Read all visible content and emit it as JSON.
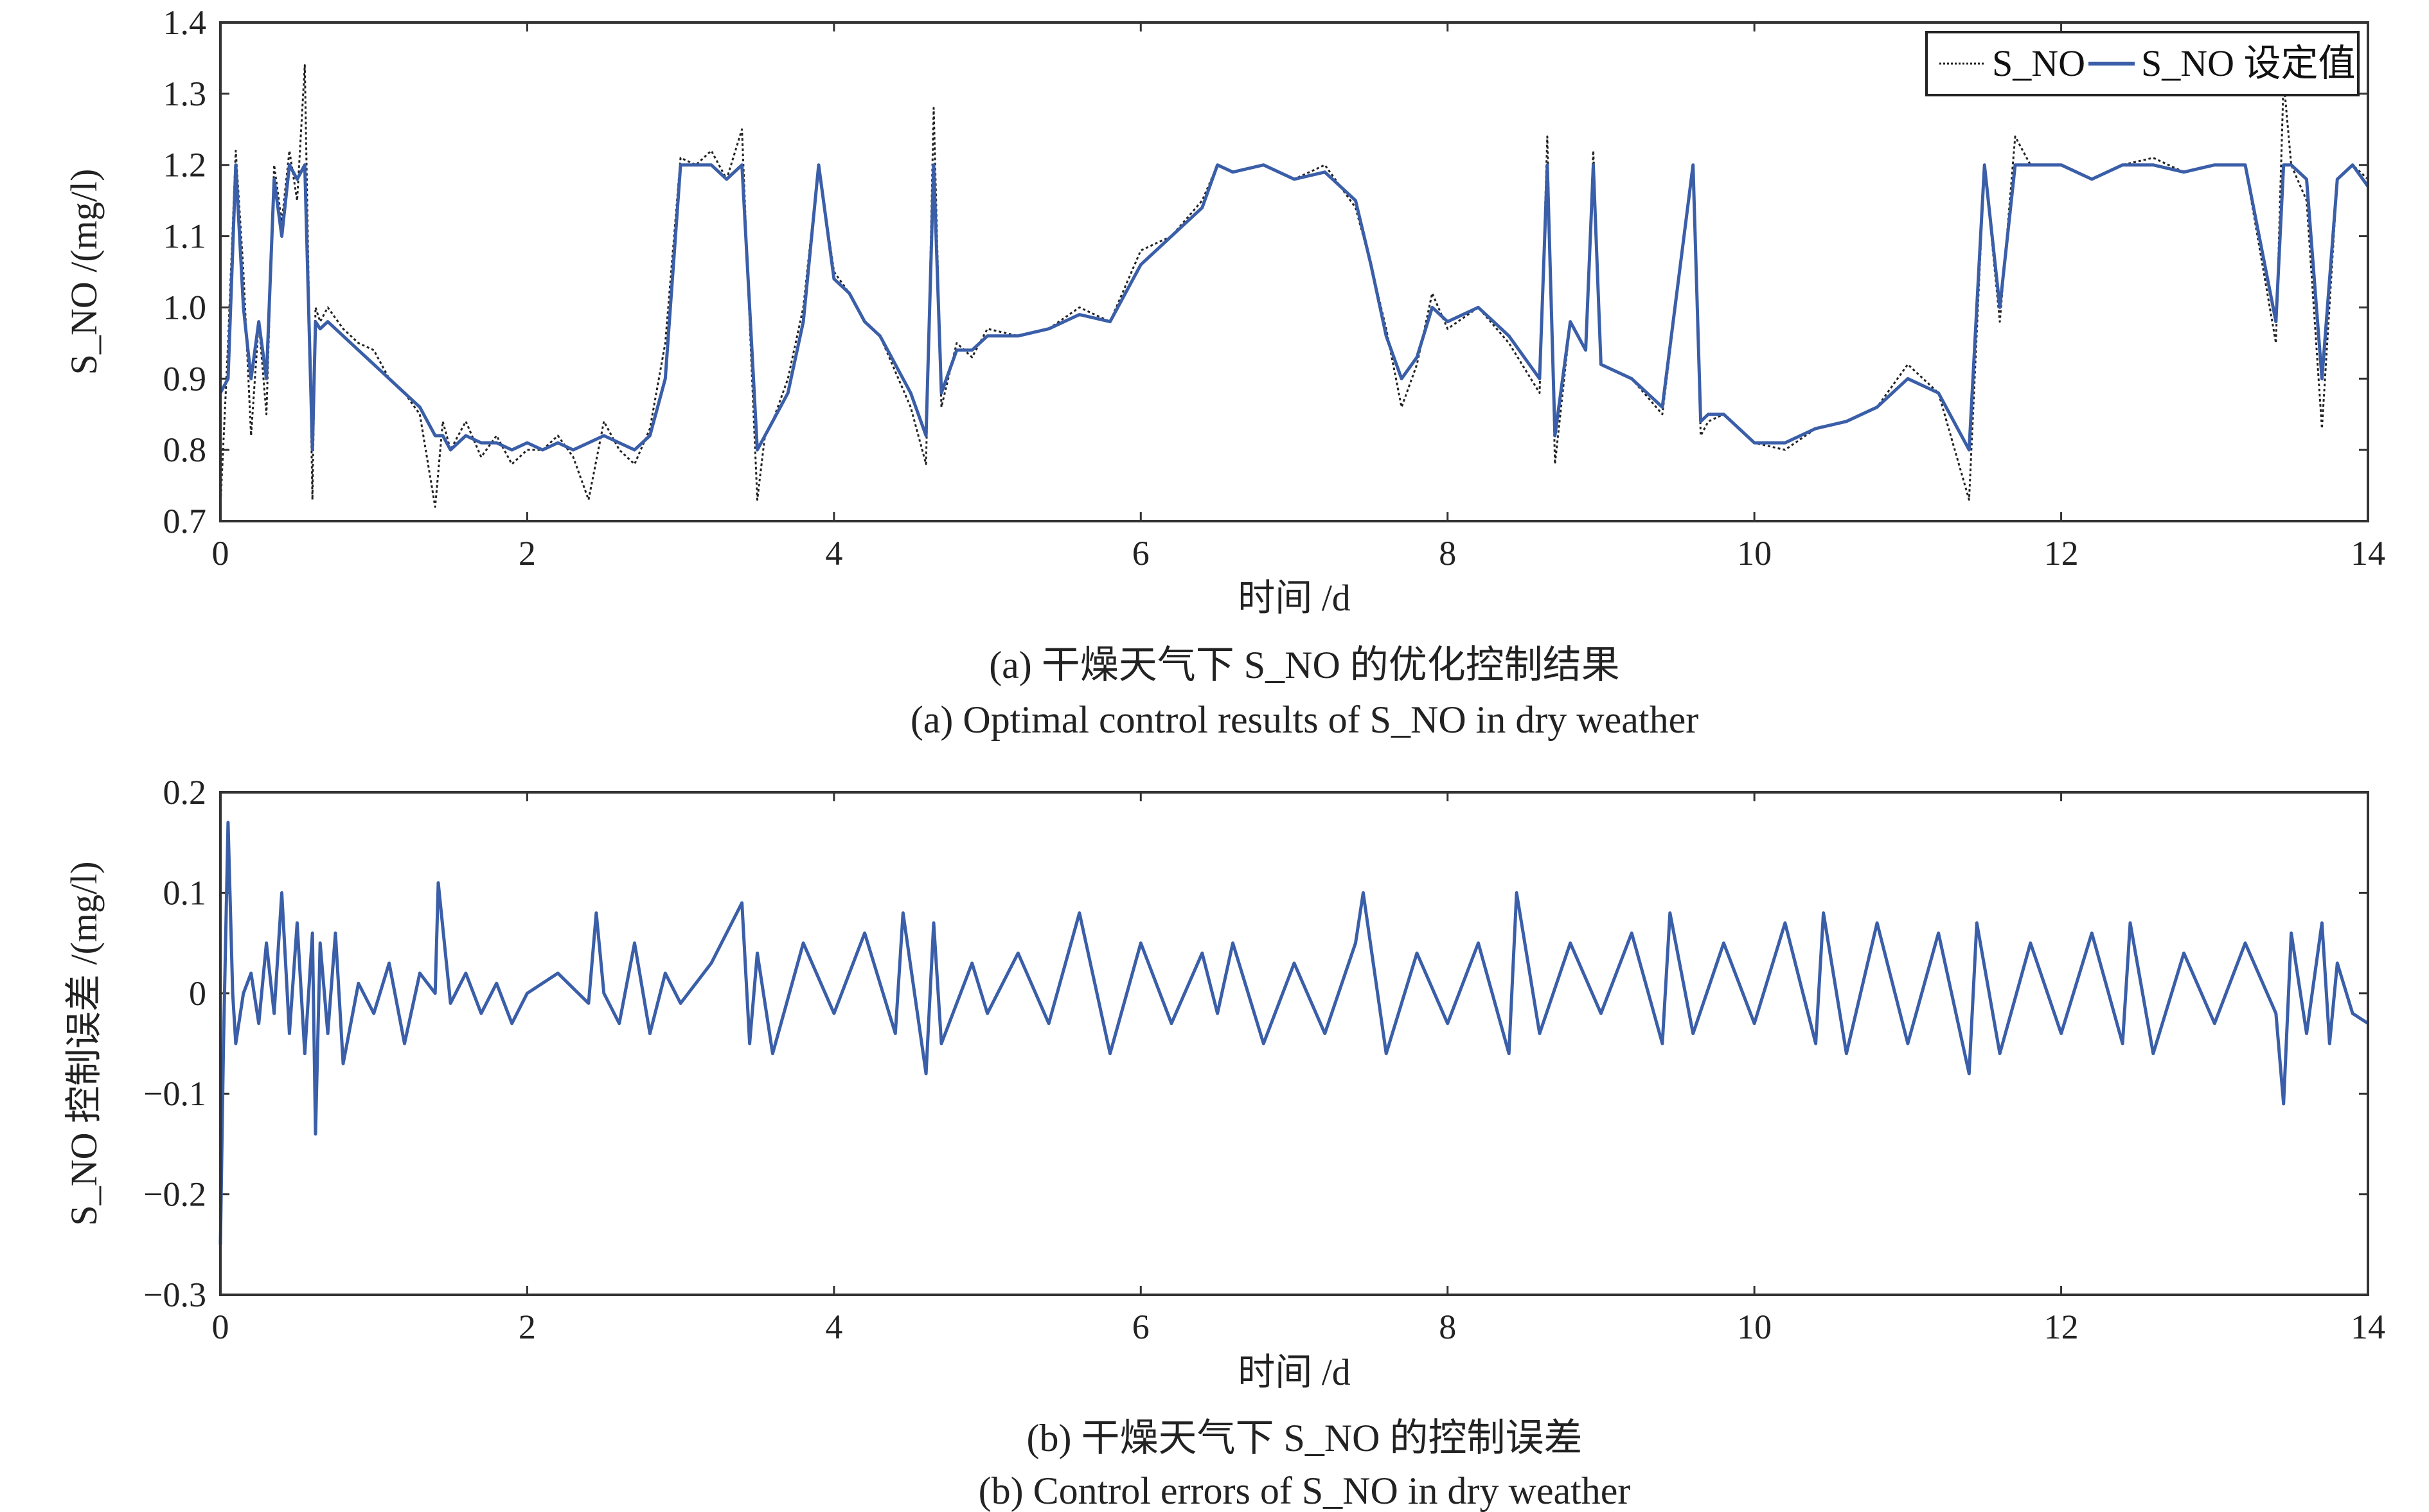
{
  "chart_data": [
    {
      "type": "line",
      "xlabel": "时间 /d",
      "ylabel": "S_NO /(mg/l)",
      "caption_cn": "(a) 干燥天气下 S_NO 的优化控制结果",
      "caption_en": "(a) Optimal control results of S_NO in dry weather",
      "xlim": [
        0,
        14
      ],
      "ylim": [
        0.7,
        1.4
      ],
      "xticks": [
        "0",
        "2",
        "4",
        "6",
        "8",
        "10",
        "12",
        "14"
      ],
      "yticks": [
        "0.7",
        "0.8",
        "0.9",
        "1.0",
        "1.1",
        "1.2",
        "1.3",
        "1.4"
      ],
      "legend_position": "top-right",
      "series": [
        {
          "name": "S_NO",
          "style": "dotted",
          "color": "#222222",
          "x": [
            0,
            0.05,
            0.1,
            0.15,
            0.2,
            0.25,
            0.3,
            0.35,
            0.4,
            0.45,
            0.5,
            0.55,
            0.6,
            0.62,
            0.65,
            0.7,
            0.8,
            0.9,
            1.0,
            1.1,
            1.2,
            1.3,
            1.4,
            1.45,
            1.5,
            1.6,
            1.7,
            1.8,
            1.9,
            2.0,
            2.1,
            2.2,
            2.3,
            2.4,
            2.5,
            2.6,
            2.7,
            2.8,
            2.9,
            3.0,
            3.1,
            3.2,
            3.3,
            3.4,
            3.45,
            3.5,
            3.55,
            3.6,
            3.7,
            3.8,
            3.9,
            4.0,
            4.1,
            4.2,
            4.3,
            4.4,
            4.5,
            4.6,
            4.65,
            4.7,
            4.8,
            4.9,
            5.0,
            5.2,
            5.4,
            5.6,
            5.8,
            6.0,
            6.2,
            6.4,
            6.5,
            6.6,
            6.8,
            7.0,
            7.2,
            7.4,
            7.5,
            7.6,
            7.7,
            7.8,
            7.9,
            8.0,
            8.2,
            8.4,
            8.6,
            8.65,
            8.7,
            8.8,
            8.9,
            8.95,
            9.0,
            9.2,
            9.4,
            9.6,
            9.65,
            9.7,
            9.8,
            10.0,
            10.2,
            10.4,
            10.6,
            10.8,
            11.0,
            11.2,
            11.4,
            11.5,
            11.6,
            11.7,
            11.8,
            12.0,
            12.2,
            12.4,
            12.6,
            12.8,
            13.0,
            13.2,
            13.4,
            13.45,
            13.5,
            13.6,
            13.7,
            13.8,
            13.9,
            14.0
          ],
          "y": [
            0.72,
            0.95,
            1.22,
            1.05,
            0.82,
            0.98,
            0.85,
            1.2,
            1.12,
            1.22,
            1.15,
            1.34,
            0.73,
            1.0,
            0.98,
            1.0,
            0.97,
            0.95,
            0.94,
            0.9,
            0.88,
            0.85,
            0.72,
            0.84,
            0.8,
            0.84,
            0.79,
            0.82,
            0.78,
            0.8,
            0.8,
            0.82,
            0.79,
            0.73,
            0.84,
            0.8,
            0.78,
            0.83,
            0.95,
            1.21,
            1.2,
            1.22,
            1.18,
            1.25,
            0.98,
            0.73,
            0.82,
            0.84,
            0.9,
            1.0,
            1.2,
            1.05,
            1.02,
            0.98,
            0.96,
            0.91,
            0.86,
            0.78,
            1.28,
            0.86,
            0.95,
            0.93,
            0.97,
            0.96,
            0.97,
            1.0,
            0.98,
            1.08,
            1.1,
            1.15,
            1.2,
            1.19,
            1.2,
            1.18,
            1.2,
            1.14,
            1.06,
            0.97,
            0.86,
            0.92,
            1.02,
            0.97,
            1.0,
            0.95,
            0.88,
            1.24,
            0.78,
            0.98,
            0.94,
            1.22,
            0.92,
            0.9,
            0.85,
            1.2,
            0.82,
            0.84,
            0.85,
            0.81,
            0.8,
            0.83,
            0.84,
            0.86,
            0.92,
            0.88,
            0.73,
            1.2,
            0.98,
            1.24,
            1.2,
            1.2,
            1.18,
            1.2,
            1.21,
            1.19,
            1.2,
            1.2,
            0.95,
            1.32,
            1.2,
            1.15,
            0.83,
            1.18,
            1.2,
            1.18
          ]
        },
        {
          "name": "S_NO 设定值",
          "style": "solid",
          "color": "#3a5ea8",
          "x": [
            0,
            0.05,
            0.1,
            0.15,
            0.2,
            0.25,
            0.3,
            0.35,
            0.4,
            0.45,
            0.5,
            0.55,
            0.6,
            0.62,
            0.65,
            0.7,
            0.8,
            0.9,
            1.0,
            1.1,
            1.2,
            1.3,
            1.4,
            1.45,
            1.5,
            1.6,
            1.7,
            1.8,
            1.9,
            2.0,
            2.1,
            2.2,
            2.3,
            2.4,
            2.5,
            2.6,
            2.7,
            2.8,
            2.9,
            3.0,
            3.1,
            3.2,
            3.3,
            3.4,
            3.45,
            3.5,
            3.55,
            3.6,
            3.7,
            3.8,
            3.9,
            4.0,
            4.1,
            4.2,
            4.3,
            4.4,
            4.5,
            4.6,
            4.65,
            4.7,
            4.8,
            4.9,
            5.0,
            5.2,
            5.4,
            5.6,
            5.8,
            6.0,
            6.2,
            6.4,
            6.5,
            6.6,
            6.8,
            7.0,
            7.2,
            7.4,
            7.5,
            7.6,
            7.7,
            7.8,
            7.9,
            8.0,
            8.2,
            8.4,
            8.6,
            8.65,
            8.7,
            8.8,
            8.9,
            8.95,
            9.0,
            9.2,
            9.4,
            9.6,
            9.65,
            9.7,
            9.8,
            10.0,
            10.2,
            10.4,
            10.6,
            10.8,
            11.0,
            11.2,
            11.4,
            11.5,
            11.6,
            11.7,
            11.8,
            12.0,
            12.2,
            12.4,
            12.6,
            12.8,
            13.0,
            13.2,
            13.4,
            13.45,
            13.5,
            13.6,
            13.7,
            13.8,
            13.9,
            14.0
          ],
          "y": [
            0.88,
            0.9,
            1.2,
            1.0,
            0.9,
            0.98,
            0.9,
            1.18,
            1.1,
            1.2,
            1.18,
            1.2,
            0.8,
            0.98,
            0.97,
            0.98,
            0.96,
            0.94,
            0.92,
            0.9,
            0.88,
            0.86,
            0.82,
            0.82,
            0.8,
            0.82,
            0.81,
            0.81,
            0.8,
            0.81,
            0.8,
            0.81,
            0.8,
            0.81,
            0.82,
            0.81,
            0.8,
            0.82,
            0.9,
            1.2,
            1.2,
            1.2,
            1.18,
            1.2,
            1.0,
            0.8,
            0.82,
            0.84,
            0.88,
            0.98,
            1.2,
            1.04,
            1.02,
            0.98,
            0.96,
            0.92,
            0.88,
            0.82,
            1.2,
            0.88,
            0.94,
            0.94,
            0.96,
            0.96,
            0.97,
            0.99,
            0.98,
            1.06,
            1.1,
            1.14,
            1.2,
            1.19,
            1.2,
            1.18,
            1.19,
            1.15,
            1.06,
            0.96,
            0.9,
            0.93,
            1.0,
            0.98,
            1.0,
            0.96,
            0.9,
            1.2,
            0.82,
            0.98,
            0.94,
            1.2,
            0.92,
            0.9,
            0.86,
            1.2,
            0.84,
            0.85,
            0.85,
            0.81,
            0.81,
            0.83,
            0.84,
            0.86,
            0.9,
            0.88,
            0.8,
            1.2,
            1.0,
            1.2,
            1.2,
            1.2,
            1.18,
            1.2,
            1.2,
            1.19,
            1.2,
            1.2,
            0.98,
            1.2,
            1.2,
            1.18,
            0.9,
            1.18,
            1.2,
            1.17
          ]
        }
      ]
    },
    {
      "type": "line",
      "xlabel": "时间 /d",
      "ylabel": "S_NO 控制误差 /(mg/l)",
      "caption_cn": "(b) 干燥天气下 S_NO 的控制误差",
      "caption_en": "(b) Control errors of S_NO in dry weather",
      "xlim": [
        0,
        14
      ],
      "ylim": [
        -0.3,
        0.2
      ],
      "xticks": [
        "0",
        "2",
        "4",
        "6",
        "8",
        "10",
        "12",
        "14"
      ],
      "yticks": [
        "−0.3",
        "−0.2",
        "−0.1",
        "0",
        "0.1",
        "0.2"
      ],
      "series": [
        {
          "name": "",
          "style": "solid",
          "color": "#3a5ea8",
          "x": [
            0,
            0.02,
            0.05,
            0.08,
            0.1,
            0.15,
            0.2,
            0.25,
            0.3,
            0.35,
            0.4,
            0.45,
            0.5,
            0.55,
            0.6,
            0.62,
            0.65,
            0.7,
            0.75,
            0.8,
            0.9,
            1.0,
            1.1,
            1.2,
            1.3,
            1.4,
            1.42,
            1.5,
            1.6,
            1.7,
            1.8,
            1.9,
            2.0,
            2.2,
            2.4,
            2.45,
            2.5,
            2.6,
            2.7,
            2.8,
            2.9,
            3.0,
            3.2,
            3.4,
            3.45,
            3.5,
            3.6,
            3.8,
            4.0,
            4.2,
            4.4,
            4.45,
            4.6,
            4.65,
            4.7,
            4.9,
            5.0,
            5.2,
            5.4,
            5.6,
            5.8,
            6.0,
            6.2,
            6.4,
            6.5,
            6.6,
            6.8,
            7.0,
            7.2,
            7.4,
            7.45,
            7.6,
            7.8,
            8.0,
            8.2,
            8.4,
            8.45,
            8.6,
            8.8,
            9.0,
            9.2,
            9.4,
            9.45,
            9.6,
            9.8,
            10.0,
            10.2,
            10.4,
            10.45,
            10.6,
            10.8,
            11.0,
            11.2,
            11.4,
            11.45,
            11.6,
            11.8,
            12.0,
            12.2,
            12.4,
            12.45,
            12.6,
            12.8,
            13.0,
            13.2,
            13.4,
            13.45,
            13.5,
            13.6,
            13.7,
            13.75,
            13.8,
            13.9,
            14.0
          ],
          "y": [
            -0.25,
            -0.05,
            0.17,
            0.0,
            -0.05,
            0.0,
            0.02,
            -0.03,
            0.05,
            -0.02,
            0.1,
            -0.04,
            0.07,
            -0.06,
            0.06,
            -0.14,
            0.05,
            -0.04,
            0.06,
            -0.07,
            0.01,
            -0.02,
            0.03,
            -0.05,
            0.02,
            0.0,
            0.11,
            -0.01,
            0.02,
            -0.02,
            0.01,
            -0.03,
            0.0,
            0.02,
            -0.01,
            0.08,
            0.0,
            -0.03,
            0.05,
            -0.04,
            0.02,
            -0.01,
            0.03,
            0.09,
            -0.05,
            0.04,
            -0.06,
            0.05,
            -0.02,
            0.06,
            -0.04,
            0.08,
            -0.08,
            0.07,
            -0.05,
            0.03,
            -0.02,
            0.04,
            -0.03,
            0.08,
            -0.06,
            0.05,
            -0.03,
            0.04,
            -0.02,
            0.05,
            -0.05,
            0.03,
            -0.04,
            0.05,
            0.1,
            -0.06,
            0.04,
            -0.03,
            0.05,
            -0.06,
            0.1,
            -0.04,
            0.05,
            -0.02,
            0.06,
            -0.05,
            0.08,
            -0.04,
            0.05,
            -0.03,
            0.07,
            -0.05,
            0.08,
            -0.06,
            0.07,
            -0.05,
            0.06,
            -0.08,
            0.07,
            -0.06,
            0.05,
            -0.04,
            0.06,
            -0.05,
            0.07,
            -0.06,
            0.04,
            -0.03,
            0.05,
            -0.02,
            -0.11,
            0.06,
            -0.04,
            0.07,
            -0.05,
            0.03,
            -0.02,
            -0.03
          ]
        }
      ]
    }
  ]
}
